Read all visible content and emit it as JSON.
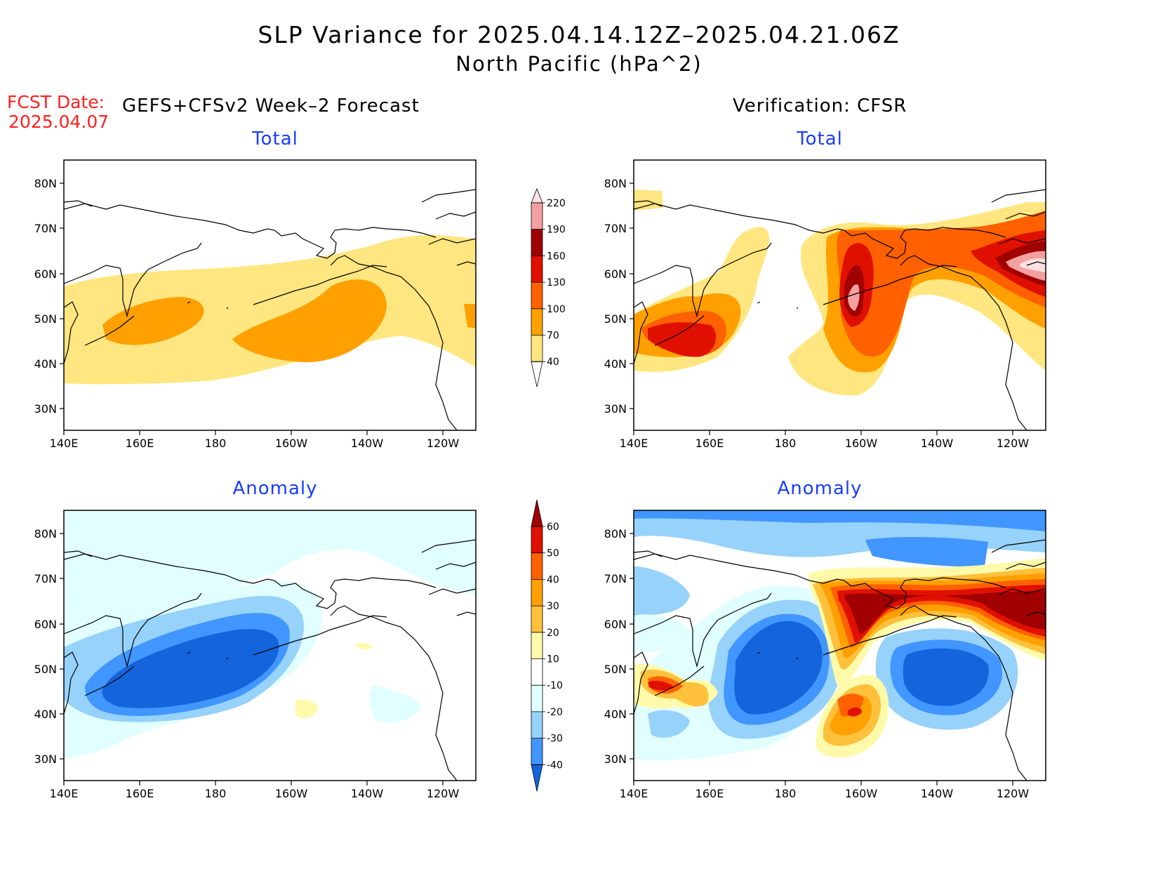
{
  "header": {
    "title": "SLP Variance for 2025.04.14.12Z–2025.04.21.06Z",
    "subtitle": "North Pacific (hPa^2)",
    "fcst_label": "FCST Date:",
    "fcst_date": "2025.04.07",
    "left_heading": "GEFS+CFSv2 Week–2 Forecast",
    "right_heading": "Verification: CFSR"
  },
  "panels": [
    {
      "id": "fcst-total",
      "title": "Total"
    },
    {
      "id": "verif-total",
      "title": "Total"
    },
    {
      "id": "fcst-anomaly",
      "title": "Anomaly"
    },
    {
      "id": "verif-anomaly",
      "title": "Anomaly"
    }
  ],
  "axes": {
    "lon_labels": [
      "140E",
      "160E",
      "180",
      "160W",
      "140W",
      "120W"
    ],
    "lat_labels": [
      "80N",
      "70N",
      "60N",
      "50N",
      "40N",
      "30N"
    ]
  },
  "colorbars": {
    "total": {
      "levels": [
        "40",
        "70",
        "100",
        "130",
        "160",
        "190",
        "220"
      ],
      "colors": [
        "#ffe680",
        "#ffa000",
        "#ff6000",
        "#e01000",
        "#a00000",
        "#f4a0a0",
        "#fde0e0"
      ]
    },
    "anomaly": {
      "levels": [
        "-40",
        "-30",
        "-20",
        "-10",
        "10",
        "20",
        "30",
        "40",
        "50",
        "60"
      ],
      "colors": [
        "#1464dc",
        "#4196ff",
        "#96d2fa",
        "#e1ffff",
        "#ffffff",
        "#fffaaa",
        "#ffc03c",
        "#ffa000",
        "#ff6000",
        "#e01000",
        "#a00000"
      ]
    }
  }
}
